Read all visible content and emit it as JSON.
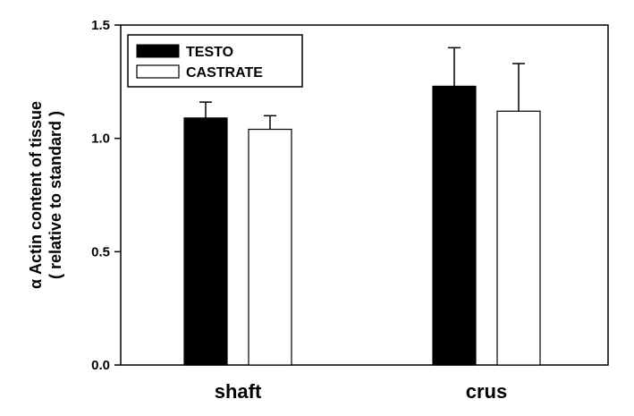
{
  "chart_data": {
    "type": "bar",
    "categories": [
      "shaft",
      "crus"
    ],
    "series": [
      {
        "name": "TESTO",
        "values": [
          1.09,
          1.23
        ],
        "errors": [
          0.07,
          0.17
        ],
        "fill": "#000000"
      },
      {
        "name": "CASTRATE",
        "values": [
          1.04,
          1.12
        ],
        "errors": [
          0.06,
          0.21
        ],
        "fill": "#ffffff"
      }
    ],
    "ylabel_line1": "α Actin content of tissue",
    "ylabel_line2": "( relative to standard )",
    "ylim": [
      0,
      1.5
    ],
    "yticks": [
      "0.0",
      "0.5",
      "1.0",
      "1.5"
    ],
    "grid": false,
    "legend_position": "top-left"
  }
}
